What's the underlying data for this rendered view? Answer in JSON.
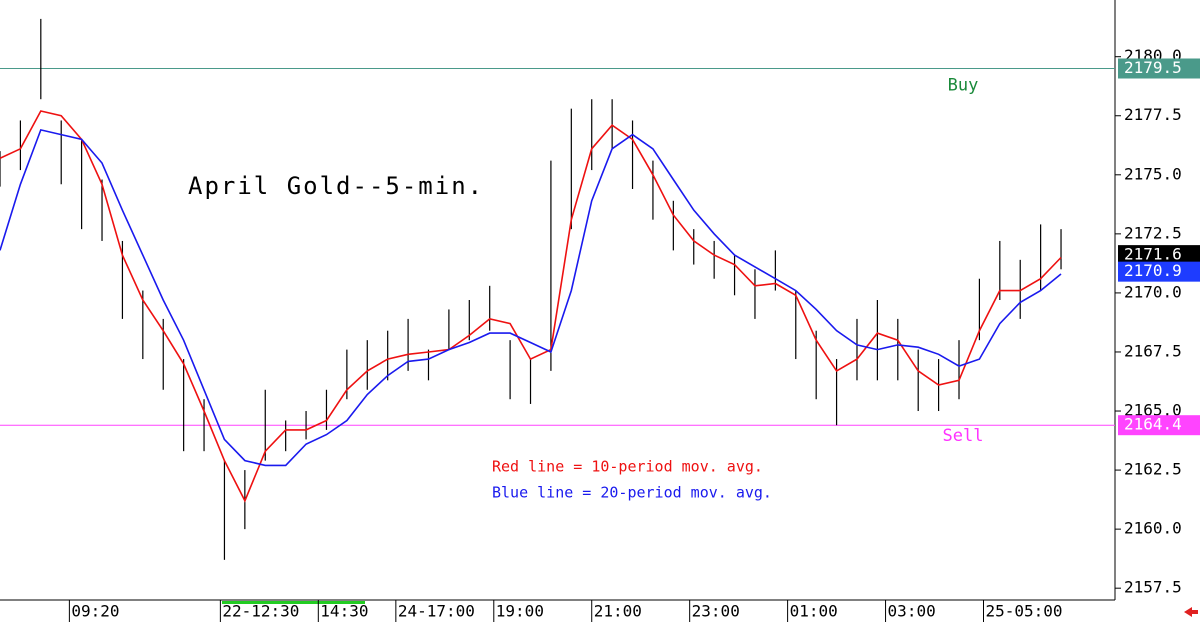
{
  "chart_data": {
    "type": "ohlc",
    "title": "April Gold--5-min.",
    "x": [
      0,
      5,
      10,
      15,
      20,
      25,
      30,
      35,
      40,
      45,
      50,
      55,
      60,
      65,
      70,
      75,
      80,
      85,
      90,
      95,
      100,
      105,
      110,
      115,
      120,
      125,
      130,
      135,
      140,
      145,
      150,
      155,
      160,
      165,
      170,
      175,
      180,
      185,
      190,
      195,
      200,
      205,
      210,
      215,
      220,
      225,
      230,
      235,
      240,
      245,
      250,
      255,
      260
    ],
    "xlim": [
      0,
      272
    ],
    "xticks": [
      {
        "value": 17,
        "label": "09:20"
      },
      {
        "value": 54,
        "label": "22-12:30"
      },
      {
        "value": 78,
        "label": "14:30"
      },
      {
        "value": 97,
        "label": "24-17:00"
      },
      {
        "value": 121,
        "label": "19:00"
      },
      {
        "value": 145,
        "label": "21:00"
      },
      {
        "value": 169,
        "label": "23:00"
      },
      {
        "value": 193,
        "label": "01:00"
      },
      {
        "value": 217,
        "label": "03:00"
      },
      {
        "value": 241,
        "label": "25-05:00"
      }
    ],
    "bars": {
      "color": "#000000",
      "high": [
        2176.0,
        2177.3,
        2181.6,
        2177.3,
        2176.5,
        2174.8,
        2172.2,
        2170.1,
        2168.9,
        2167.2,
        2165.5,
        2162.9,
        2162.5,
        2165.9,
        2164.6,
        2165.0,
        2165.9,
        2167.6,
        2168.0,
        2168.4,
        2168.9,
        2167.6,
        2169.3,
        2169.7,
        2170.3,
        2168.0,
        2167.2,
        2175.6,
        2177.8,
        2178.2,
        2178.2,
        2177.3,
        2175.6,
        2173.9,
        2172.7,
        2172.2,
        2171.6,
        2171.0,
        2171.8,
        2170.1,
        2168.4,
        2167.2,
        2168.9,
        2169.7,
        2168.9,
        2167.6,
        2167.2,
        2168.0,
        2170.6,
        2172.2,
        2171.4,
        2172.9,
        2172.7
      ],
      "low": [
        2174.5,
        2175.2,
        2178.2,
        2174.6,
        2172.7,
        2172.2,
        2168.9,
        2167.2,
        2165.9,
        2163.3,
        2163.3,
        2158.7,
        2160.0,
        2162.9,
        2163.3,
        2163.8,
        2164.2,
        2165.5,
        2165.9,
        2166.3,
        2166.7,
        2166.3,
        2167.6,
        2168.0,
        2168.4,
        2165.5,
        2165.3,
        2166.7,
        2172.7,
        2175.2,
        2176.1,
        2174.4,
        2173.1,
        2171.8,
        2171.2,
        2170.6,
        2169.9,
        2168.9,
        2170.1,
        2167.2,
        2165.5,
        2164.4,
        2166.3,
        2166.3,
        2166.3,
        2165.0,
        2165.0,
        2165.5,
        2168.0,
        2169.7,
        2168.9,
        2170.1,
        2171.0
      ]
    },
    "series": [
      {
        "name": "Red line = 10-period mov. avg.",
        "color": "#ee1111",
        "values": [
          2175.7,
          2176.1,
          2177.7,
          2177.5,
          2176.5,
          2174.6,
          2171.6,
          2169.7,
          2168.4,
          2167.0,
          2165.0,
          2162.9,
          2161.2,
          2163.3,
          2164.2,
          2164.2,
          2164.6,
          2165.9,
          2166.7,
          2167.2,
          2167.4,
          2167.5,
          2167.6,
          2168.2,
          2168.9,
          2168.7,
          2167.2,
          2167.6,
          2173.1,
          2176.1,
          2177.1,
          2176.5,
          2175.0,
          2173.3,
          2172.2,
          2171.6,
          2171.2,
          2170.3,
          2170.4,
          2169.9,
          2168.0,
          2166.7,
          2167.2,
          2168.3,
          2168.0,
          2166.7,
          2166.1,
          2166.3,
          2168.4,
          2170.1,
          2170.1,
          2170.6,
          2171.5
        ]
      },
      {
        "name": "Blue line = 20-period mov. avg.",
        "color": "#1a1aee",
        "values": [
          2171.8,
          2174.6,
          2176.9,
          2176.7,
          2176.5,
          2175.5,
          2173.5,
          2171.6,
          2169.7,
          2168.0,
          2165.9,
          2163.8,
          2162.9,
          2162.7,
          2162.7,
          2163.6,
          2164.0,
          2164.6,
          2165.7,
          2166.5,
          2167.1,
          2167.2,
          2167.6,
          2167.9,
          2168.3,
          2168.3,
          2167.9,
          2167.5,
          2170.1,
          2173.9,
          2176.1,
          2176.7,
          2176.1,
          2174.8,
          2173.5,
          2172.5,
          2171.6,
          2171.1,
          2170.6,
          2170.1,
          2169.3,
          2168.4,
          2167.8,
          2167.6,
          2167.8,
          2167.7,
          2167.4,
          2166.9,
          2167.2,
          2168.7,
          2169.6,
          2170.1,
          2170.8
        ]
      }
    ],
    "hlines": [
      {
        "label": "Buy",
        "value": 2179.5,
        "color": "#4a9a8a",
        "text_color": "#1a8a3a"
      },
      {
        "label": "Sell",
        "value": 2164.4,
        "color": "#ff44ff",
        "text_color": "#ff33ff"
      }
    ],
    "price_tags": [
      {
        "value": 2171.6,
        "color": "#000000"
      },
      {
        "value": 2170.9,
        "color": "#1e3cff"
      }
    ],
    "ylim": [
      2157,
      2182.4
    ],
    "yticks": [
      2157.5,
      {
        "value": 2160,
        "label": "2160.0"
      },
      2162.5,
      {
        "value": 2165,
        "label": "2165.0"
      },
      2167.5,
      {
        "value": 2170,
        "label": "2170.0"
      },
      2172.5,
      {
        "value": 2175,
        "label": "2175.0"
      },
      2177.5,
      {
        "value": 2180,
        "label": "2180.0"
      }
    ]
  }
}
